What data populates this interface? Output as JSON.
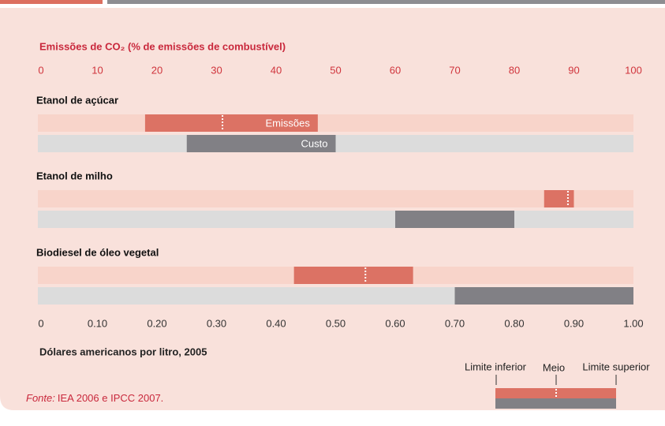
{
  "chart_data": {
    "type": "range_bar",
    "title": "Emissões de CO₂ (% de emissões de combustível)",
    "xlim": [
      0,
      100
    ],
    "xticks": [
      0,
      10,
      20,
      30,
      40,
      50,
      60,
      70,
      80,
      90,
      100
    ],
    "x2lim": [
      0,
      1
    ],
    "x2ticks": [
      0,
      {
        "value": 0.1,
        "label": "0.10"
      },
      {
        "value": 0.2,
        "label": "0.20"
      },
      {
        "value": 0.3,
        "label": "0.30"
      },
      {
        "value": 0.4,
        "label": "0.40"
      },
      {
        "value": 0.5,
        "label": "0.50"
      },
      {
        "value": 0.6,
        "label": "0.60"
      },
      {
        "value": 0.7,
        "label": "0.70"
      },
      {
        "value": 0.8,
        "label": "0.80"
      },
      {
        "value": 0.9,
        "label": "0.90"
      },
      {
        "value": 1,
        "label": "1.00"
      }
    ],
    "x2label": "Dólares americanos por litro, 2005",
    "categories": [
      "Etanol de açúcar",
      "Etanol de milho",
      "Biodiesel de óleo vegetal"
    ],
    "series": [
      {
        "name": "Emissões",
        "color": "#dc7264",
        "track_color": "#f8d4ca",
        "low": [
          18,
          85,
          43
        ],
        "high": [
          47,
          90,
          63
        ],
        "mid": [
          31,
          89,
          55
        ]
      },
      {
        "name": "Custo",
        "color": "#818085",
        "track_color": "#dcdcdc",
        "axis": "x2",
        "low": [
          0.25,
          0.6,
          0.7
        ],
        "high": [
          0.5,
          0.8,
          1
        ]
      }
    ],
    "legend": {
      "lower": "Limite inferior",
      "mid": "Meio",
      "upper": "Limite superior"
    },
    "source_label": "Fonte:",
    "source": "IEA 2006 e IPCC 2007."
  }
}
